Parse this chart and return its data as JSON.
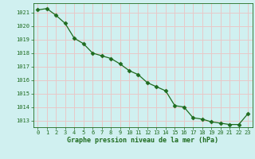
{
  "x": [
    0,
    1,
    2,
    3,
    4,
    5,
    6,
    7,
    8,
    9,
    10,
    11,
    12,
    13,
    14,
    15,
    16,
    17,
    18,
    19,
    20,
    21,
    22,
    23
  ],
  "y": [
    1021.2,
    1021.3,
    1020.8,
    1020.2,
    1019.1,
    1018.7,
    1018.0,
    1017.8,
    1017.6,
    1017.2,
    1016.7,
    1016.4,
    1015.8,
    1015.5,
    1015.2,
    1014.1,
    1014.0,
    1013.2,
    1013.1,
    1012.9,
    1012.8,
    1012.7,
    1012.7,
    1013.5
  ],
  "line_color": "#1e6b1e",
  "marker": "D",
  "marker_size": 2.5,
  "bg_color": "#d0f0f0",
  "grid_color": "#e8c8c8",
  "xlabel": "Graphe pression niveau de la mer (hPa)",
  "xlabel_color": "#1e6b1e",
  "tick_color": "#1e6b1e",
  "ylim_min": 1012.5,
  "ylim_max": 1021.7,
  "yticks": [
    1013,
    1014,
    1015,
    1016,
    1017,
    1018,
    1019,
    1020,
    1021
  ],
  "xticks": [
    0,
    1,
    2,
    3,
    4,
    5,
    6,
    7,
    8,
    9,
    10,
    11,
    12,
    13,
    14,
    15,
    16,
    17,
    18,
    19,
    20,
    21,
    22,
    23
  ]
}
